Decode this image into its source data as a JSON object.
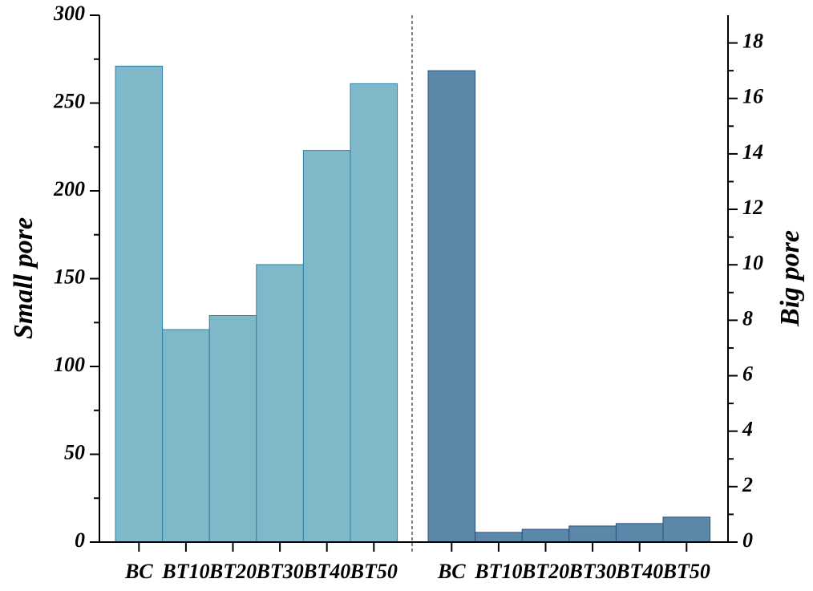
{
  "chart_data": {
    "type": "bar",
    "ylabel": "Small pore",
    "y2label": "Big pore",
    "categories": [
      "BC",
      "BT10",
      "BT20",
      "BT30",
      "BT40",
      "BT50",
      "BC",
      "BT10",
      "BT20",
      "BT30",
      "BT40",
      "BT50"
    ],
    "series": [
      {
        "color": "#7fb9c9",
        "axis": "y",
        "values": [
          271,
          121,
          129,
          158,
          223,
          261,
          null,
          null,
          null,
          null,
          null,
          null
        ]
      },
      {
        "color": "#5b87a8",
        "axis": "y2",
        "values": [
          null,
          null,
          null,
          null,
          null,
          null,
          17,
          0.35,
          0.46,
          0.58,
          0.67,
          0.9
        ]
      }
    ],
    "ylim": [
      0,
      300
    ],
    "yticks": [
      0,
      50,
      100,
      150,
      200,
      250,
      300
    ],
    "y2lim": [
      0,
      19
    ],
    "y2ticks": [
      0,
      2,
      4,
      6,
      8,
      10,
      12,
      14,
      16,
      18
    ]
  }
}
